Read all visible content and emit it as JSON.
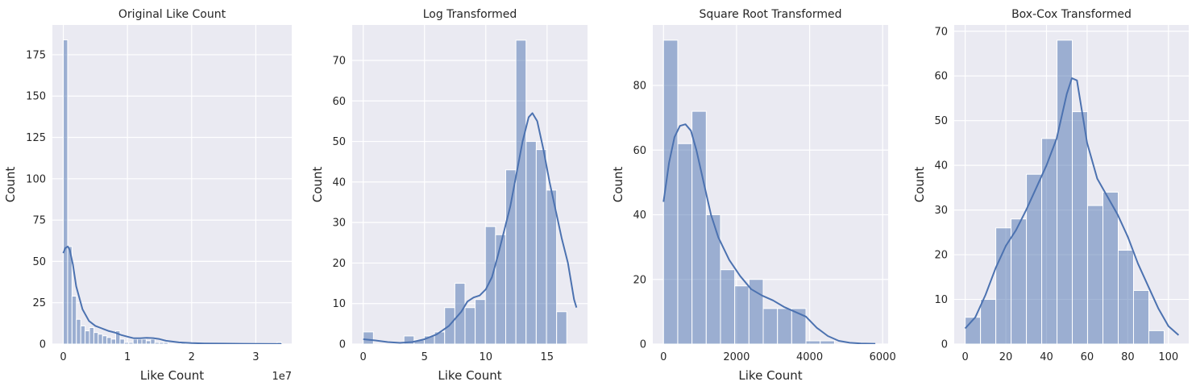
{
  "figure": {
    "background": "#ffffff",
    "panel_color": "#eaeaf2",
    "grid_color": "#ffffff",
    "bar_color": "#4c72b0",
    "bar_alpha": 0.5,
    "kde_color": "#4c72b0"
  },
  "chart_data": [
    {
      "type": "bar",
      "title": "Original Like Count",
      "xlabel": "Like Count",
      "ylabel": "Count",
      "x_offset_text": "1e7",
      "x_unit_scale": 10000000,
      "xlim": [
        -1700000,
        35600000
      ],
      "ylim": [
        0,
        193
      ],
      "xticks": [
        0,
        10000000,
        20000000,
        30000000
      ],
      "xticklabels": [
        "0",
        "1",
        "2",
        "3"
      ],
      "yticks": [
        0,
        25,
        50,
        75,
        100,
        125,
        150,
        175
      ],
      "yticklabels": [
        "0",
        "25",
        "50",
        "75",
        "100",
        "125",
        "150",
        "175"
      ],
      "bins": {
        "start": 0,
        "width": 680000,
        "counts": [
          184,
          59,
          29,
          15,
          11,
          8,
          10,
          7,
          6,
          5,
          4,
          3,
          8,
          3,
          1,
          1,
          3,
          3,
          3,
          2,
          3,
          1,
          1,
          1,
          0,
          0,
          0,
          1,
          0,
          0,
          0,
          0,
          0,
          0,
          0,
          0,
          0,
          0,
          0,
          0,
          0,
          0,
          0,
          0,
          0,
          0,
          0,
          0,
          0,
          1
        ]
      },
      "kde": {
        "x": [
          0,
          300000,
          700000,
          1000000,
          1500000,
          2000000,
          3000000,
          4000000,
          5000000,
          6000000,
          7000000,
          8000000,
          9000000,
          10000000,
          11000000,
          12000000,
          13000000,
          14000000,
          15000000,
          16000000,
          18000000,
          20000000,
          22000000,
          25000000,
          28000000,
          31000000,
          34000000
        ],
        "y": [
          55,
          58,
          59,
          57,
          48,
          35,
          21,
          14,
          11,
          9.5,
          8,
          7,
          5.5,
          4.5,
          3.5,
          3.5,
          3.8,
          3.6,
          3,
          2,
          1,
          0.6,
          0.4,
          0.3,
          0.2,
          0.1,
          0.05
        ]
      }
    },
    {
      "type": "bar",
      "title": "Log Transformed",
      "xlabel": "Like Count",
      "ylabel": "Count",
      "xlim": [
        -0.9,
        18.3
      ],
      "ylim": [
        0,
        78.75
      ],
      "xticks": [
        0,
        5,
        10,
        15
      ],
      "xticklabels": [
        "0",
        "5",
        "10",
        "15"
      ],
      "yticks": [
        0,
        10,
        20,
        30,
        40,
        50,
        60,
        70
      ],
      "yticklabels": [
        "0",
        "10",
        "20",
        "30",
        "40",
        "50",
        "60",
        "70"
      ],
      "bins": {
        "start": 0,
        "width": 0.8304,
        "counts": [
          3,
          0,
          0,
          0,
          2,
          1,
          2,
          3,
          9,
          15,
          9,
          11,
          29,
          27,
          43,
          75,
          50,
          48,
          38,
          8,
          0
        ]
      },
      "kde": {
        "x": [
          0,
          1,
          2,
          3,
          4,
          5,
          6,
          7,
          8,
          8.5,
          9,
          9.5,
          10,
          10.5,
          11,
          11.5,
          12,
          12.5,
          13,
          13.5,
          13.8,
          14.2,
          14.7,
          15.2,
          15.7,
          16.2,
          16.7,
          17.2,
          17.4
        ],
        "y": [
          1.2,
          0.9,
          0.5,
          0.3,
          0.5,
          1.2,
          2.4,
          4.5,
          8,
          10.5,
          11.5,
          12,
          13.5,
          16.5,
          22,
          28,
          34,
          42,
          50,
          56,
          57,
          55,
          48,
          40,
          33,
          26,
          20,
          11,
          9
        ]
      }
    },
    {
      "type": "bar",
      "title": "Square Root Transformed",
      "xlabel": "Like Count",
      "ylabel": "Count",
      "xlim": [
        -293,
        6150
      ],
      "ylim": [
        0,
        98.7
      ],
      "xticks": [
        0,
        2000,
        4000,
        6000
      ],
      "xticklabels": [
        "0",
        "2000",
        "4000",
        "6000"
      ],
      "yticks": [
        0,
        20,
        40,
        60,
        80
      ],
      "yticklabels": [
        "0",
        "20",
        "40",
        "60",
        "80"
      ],
      "bins": {
        "start": 0,
        "width": 390,
        "counts": [
          94,
          62,
          72,
          40,
          23,
          18,
          20,
          11,
          11,
          11,
          1,
          1,
          0,
          0,
          0
        ]
      },
      "kde": {
        "x": [
          0,
          150,
          300,
          450,
          600,
          750,
          900,
          1100,
          1300,
          1500,
          1800,
          2100,
          2400,
          2700,
          3000,
          3300,
          3600,
          3900,
          4200,
          4500,
          4800,
          5100,
          5400,
          5800
        ],
        "y": [
          44,
          56,
          64,
          67.5,
          68,
          66,
          60,
          50,
          40,
          33,
          26,
          21,
          17,
          15,
          13.5,
          11.5,
          10,
          8.5,
          5,
          2.5,
          1,
          0.4,
          0.2,
          0.1
        ]
      }
    },
    {
      "type": "bar",
      "title": "Box-Cox Transformed",
      "xlabel": "",
      "ylabel": "Count",
      "xlim": [
        -5.4,
        110.0
      ],
      "ylim": [
        0,
        71.4
      ],
      "xticks": [
        0,
        20,
        40,
        60,
        80,
        100
      ],
      "xticklabels": [
        "0",
        "20",
        "40",
        "60",
        "80",
        "100"
      ],
      "yticks": [
        0,
        10,
        20,
        30,
        40,
        50,
        60,
        70
      ],
      "yticklabels": [
        "0",
        "10",
        "20",
        "30",
        "40",
        "50",
        "60",
        "70"
      ],
      "bins": {
        "start": 0,
        "width": 7.53,
        "counts": [
          6,
          10,
          26,
          28,
          38,
          46,
          68,
          52,
          31,
          34,
          21,
          12,
          3
        ]
      },
      "kde": {
        "x": [
          0,
          5,
          10,
          15,
          20,
          25,
          30,
          35,
          40,
          45,
          50,
          52.5,
          55,
          60,
          65,
          70,
          75,
          80,
          85,
          90,
          95,
          100,
          105
        ],
        "y": [
          3.5,
          6,
          11,
          17,
          22,
          25.5,
          30,
          35,
          40,
          46,
          56,
          59.5,
          59,
          45,
          37,
          33,
          29,
          24,
          18,
          13,
          8,
          4,
          2
        ]
      }
    }
  ]
}
